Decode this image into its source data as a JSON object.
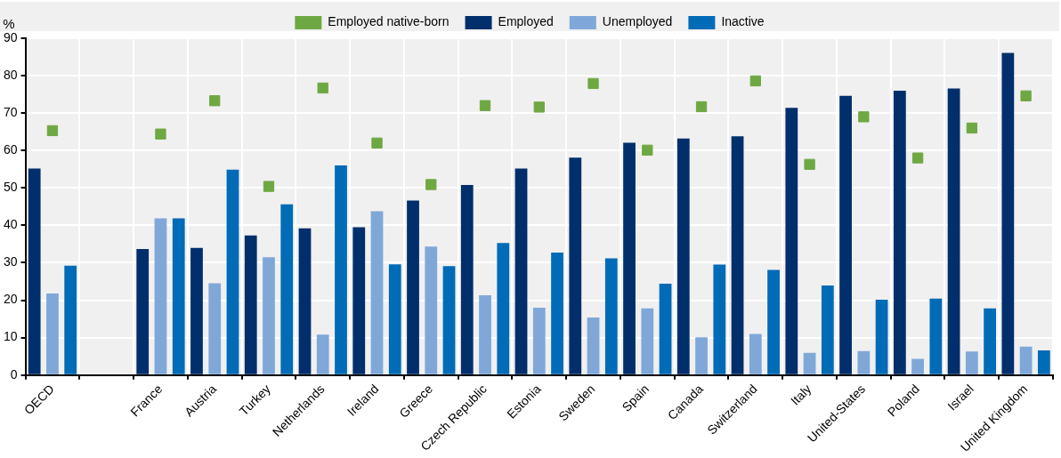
{
  "chart_data": {
    "type": "bar",
    "ylabel": "%",
    "categories": [
      "OECD",
      null,
      "France",
      "Austria",
      "Turkey",
      "Netherlands",
      "Ireland",
      "Greece",
      "Czech Republic",
      "Estonia",
      "Sweden",
      "Spain",
      "Canada",
      "Switzerland",
      "Italy",
      "United-States",
      "Poland",
      "Israel",
      "United Kingdom"
    ],
    "series": [
      {
        "name": "Employed",
        "color": "#002f6c",
        "values": [
          55.2,
          null,
          33.7,
          34,
          37.3,
          39.2,
          39.5,
          46.6,
          50.8,
          55.2,
          58.1,
          62.1,
          63.2,
          63.8,
          71.4,
          74.6,
          76,
          76.6,
          86.1
        ]
      },
      {
        "name": "Unemployed",
        "color": "#7fa8d9",
        "values": [
          21.8,
          null,
          41.9,
          24.5,
          31.5,
          10.8,
          43.8,
          34.3,
          21.3,
          18,
          15.4,
          17.8,
          10.1,
          11,
          5.9,
          6.4,
          4.3,
          6.3,
          7.6
        ]
      },
      {
        "name": "Inactive",
        "color": "#006bb6",
        "values": [
          29.2,
          null,
          41.9,
          54.9,
          45.6,
          56,
          29.6,
          29.1,
          35.3,
          32.7,
          31.2,
          24.4,
          29.5,
          28.1,
          23.9,
          20.1,
          20.4,
          17.8,
          6.6
        ]
      },
      {
        "name": "Employed native-born",
        "type": "scatter",
        "color": "#6ea842",
        "values": [
          65.3,
          null,
          64.4,
          73.3,
          50.4,
          76.7,
          62,
          50.9,
          72,
          71.6,
          77.9,
          60.1,
          71.7,
          78.6,
          56.3,
          69,
          58,
          66,
          74.6
        ]
      }
    ],
    "ylim": [
      0,
      90
    ],
    "yticks": [
      0,
      10,
      20,
      30,
      40,
      50,
      60,
      70,
      80,
      90
    ],
    "grid": true,
    "legend": "top",
    "marker": "square"
  }
}
